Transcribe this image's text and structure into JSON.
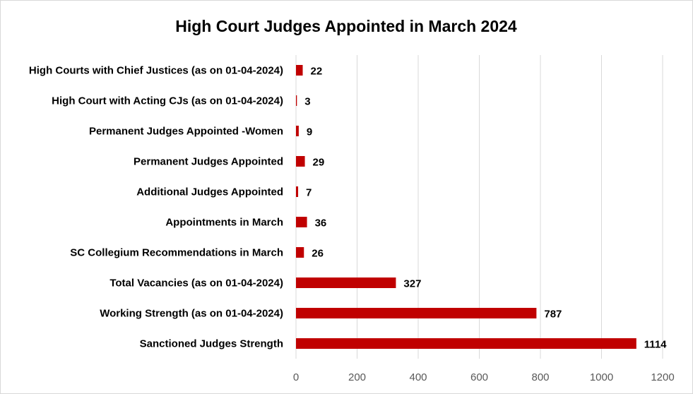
{
  "chart_data": {
    "type": "bar",
    "orientation": "horizontal",
    "title": "High Court Judges Appointed in March  2024",
    "xlabel": "",
    "ylabel": "",
    "categories": [
      "High Courts with Chief Justices (as on 01-04-2024)",
      "High Court with Acting CJs (as on 01-04-2024)",
      "Permanent Judges Appointed -Women",
      "Permanent Judges Appointed",
      "Additional Judges Appointed",
      "Appointments in March",
      "SC Collegium Recommendations in March",
      "Total Vacancies (as on 01-04-2024)",
      "Working Strength (as on 01-04-2024)",
      "Sanctioned Judges Strength"
    ],
    "values": [
      22,
      3,
      9,
      29,
      7,
      36,
      26,
      327,
      787,
      1114
    ],
    "value_labels": [
      "22",
      "3",
      "9",
      "29",
      "7",
      "36",
      "26",
      "327",
      "787",
      "1114"
    ],
    "xlim": [
      0,
      1200
    ],
    "xticks": [
      0,
      200,
      400,
      600,
      800,
      1000,
      1200
    ],
    "xtick_labels": [
      "0",
      "200",
      "400",
      "600",
      "800",
      "1000",
      "1200"
    ],
    "grid": true,
    "legend": "none",
    "bar_color": "#C00000"
  }
}
